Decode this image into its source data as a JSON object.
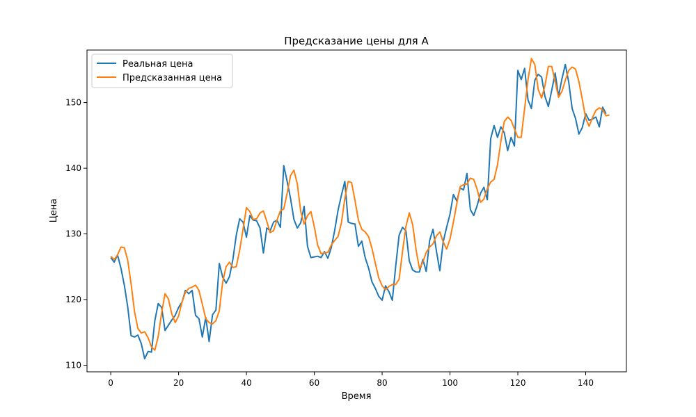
{
  "chart_data": {
    "type": "line",
    "title": "Предсказание цены для A",
    "xlabel": "Время",
    "ylabel": "Цена",
    "xlim": [
      -7,
      152
    ],
    "ylim": [
      109,
      158
    ],
    "xticks": [
      0,
      20,
      40,
      60,
      80,
      100,
      120,
      140
    ],
    "yticks": [
      110,
      120,
      130,
      140,
      150
    ],
    "grid": false,
    "legend_position": "top-left",
    "series": [
      {
        "name": "Реальная цена",
        "color": "#1f77b4",
        "values": [
          126.4,
          125.7,
          126.8,
          124.8,
          122.2,
          118.9,
          114.5,
          114.3,
          114.6,
          113.3,
          111.0,
          112.1,
          112.0,
          116.8,
          119.4,
          118.8,
          115.3,
          116.1,
          116.9,
          117.6,
          118.8,
          119.6,
          121.4,
          120.9,
          121.4,
          117.6,
          117.1,
          114.3,
          117.3,
          113.6,
          117.7,
          118.4,
          125.5,
          123.4,
          122.5,
          123.5,
          126.1,
          129.8,
          132.3,
          131.8,
          129.5,
          132.8,
          132.1,
          132.0,
          130.9,
          127.1,
          130.9,
          130.5,
          131.8,
          132.1,
          131.0,
          140.4,
          138.0,
          135.4,
          132.2,
          130.9,
          131.7,
          134.2,
          128.1,
          126.4,
          126.5,
          126.6,
          126.4,
          127.3,
          126.3,
          127.9,
          130.5,
          133.6,
          135.9,
          138.0,
          131.8,
          131.6,
          131.5,
          128.1,
          128.9,
          126.4,
          124.8,
          122.7,
          121.7,
          120.5,
          119.9,
          122.1,
          121.2,
          119.9,
          125.1,
          129.8,
          131.0,
          130.5,
          125.9,
          124.5,
          124.2,
          124.2,
          126.1,
          124.3,
          129.0,
          130.7,
          127.4,
          124.4,
          128.8,
          131.0,
          133.0,
          136.0,
          135.0,
          137.0,
          136.7,
          139.2,
          133.7,
          132.8,
          134.3,
          136.2,
          137.1,
          135.2,
          144.5,
          146.5,
          144.7,
          146.3,
          145.4,
          142.7,
          144.7,
          143.4,
          154.9,
          153.5,
          155.2,
          150.4,
          149.1,
          153.4,
          154.3,
          153.9,
          150.9,
          149.4,
          151.9,
          154.5,
          151.0,
          153.6,
          155.8,
          153.1,
          149.1,
          147.6,
          145.2,
          146.2,
          148.3,
          147.3,
          147.5,
          147.8,
          146.3,
          149.3,
          148.3
        ]
      },
      {
        "name": "Предсказанная цена",
        "color": "#ff7f0e",
        "values": [
          126.6,
          126.1,
          126.8,
          128.0,
          127.9,
          126.0,
          122.4,
          118.2,
          115.6,
          114.9,
          115.1,
          114.2,
          112.8,
          112.3,
          114.4,
          118.0,
          120.9,
          120.1,
          117.8,
          116.5,
          117.5,
          119.6,
          121.1,
          121.7,
          121.9,
          122.2,
          121.4,
          119.3,
          117.1,
          116.5,
          116.3,
          116.8,
          118.3,
          122.7,
          125.0,
          125.7,
          124.9,
          125.0,
          127.5,
          130.7,
          134.0,
          133.4,
          132.2,
          132.3,
          133.2,
          133.5,
          131.9,
          130.2,
          130.5,
          132.1,
          133.5,
          133.8,
          136.2,
          138.9,
          139.7,
          137.6,
          133.4,
          131.5,
          132.8,
          133.4,
          131.1,
          128.3,
          127.0,
          127.1,
          127.2,
          128.3,
          129.0,
          129.6,
          131.7,
          135.4,
          138.0,
          137.8,
          135.1,
          132.1,
          130.7,
          130.3,
          129.6,
          127.8,
          125.5,
          123.3,
          122.1,
          121.5,
          122.0,
          122.3,
          122.3,
          123.1,
          127.3,
          131.1,
          133.2,
          131.4,
          127.6,
          124.7,
          125.7,
          127.2,
          128.0,
          128.5,
          129.7,
          130.3,
          128.8,
          127.7,
          129.2,
          131.8,
          134.6,
          137.2,
          137.5,
          137.6,
          138.5,
          138.3,
          136.8,
          134.8,
          135.3,
          136.9,
          137.9,
          138.3,
          140.5,
          144.1,
          147.1,
          147.8,
          147.3,
          146.0,
          144.7,
          144.7,
          149.1,
          153.5,
          156.7,
          155.8,
          152.0,
          150.7,
          152.6,
          155.5,
          155.5,
          153.2,
          150.8,
          151.7,
          153.4,
          154.9,
          155.4,
          155.1,
          153.2,
          150.5,
          147.6,
          146.4,
          147.7,
          148.8,
          149.2,
          148.9,
          148.0,
          148.1
        ]
      }
    ]
  }
}
